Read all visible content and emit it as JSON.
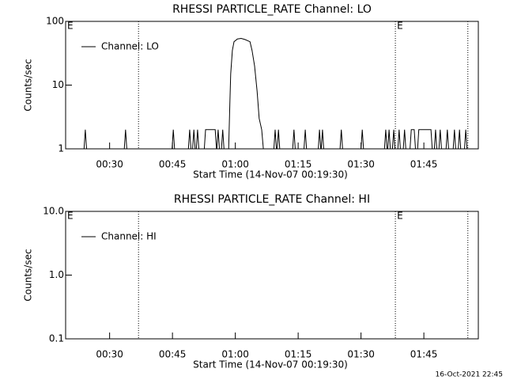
{
  "chart_data": [
    {
      "type": "line",
      "title": "RHESSI PARTICLE_RATE Channel: LO",
      "xlabel": "Start Time (14-Nov-07 00:19:30)",
      "ylabel": "Counts/sec",
      "log_y": true,
      "ylim": [
        1,
        100
      ],
      "yticks": [
        1,
        10,
        100
      ],
      "xlim": [
        0,
        98.5
      ],
      "xticks": [
        {
          "value": 10.5,
          "label": "00:30"
        },
        {
          "value": 25.5,
          "label": "00:45"
        },
        {
          "value": 40.5,
          "label": "01:00"
        },
        {
          "value": 55.5,
          "label": "01:15"
        },
        {
          "value": 70.5,
          "label": "01:30"
        },
        {
          "value": 85.5,
          "label": "01:45"
        }
      ],
      "vlines": [
        17.4,
        78.7,
        96
      ],
      "markers": [
        {
          "x": 0,
          "label": "E"
        },
        {
          "x": 78.7,
          "label": "E"
        }
      ],
      "series": [
        {
          "name": "Channel: LO",
          "color": "#000000",
          "x": [
            0,
            4.4,
            4.7,
            5.0,
            14.0,
            14.3,
            14.6,
            25.4,
            25.7,
            26.0,
            29.3,
            29.6,
            29.9,
            30.3,
            30.6,
            30.9,
            31.2,
            31.5,
            31.8,
            33.1,
            33.4,
            35.7,
            36.0,
            36.1,
            36.4,
            36.7,
            37.2,
            37.5,
            37.8,
            38.9,
            39.2,
            39.4,
            39.8,
            40.2,
            41.0,
            41.9,
            42.8,
            44.0,
            44.5,
            45.1,
            45.7,
            46.2,
            46.8,
            47.2,
            49.7,
            50.0,
            50.3,
            50.5,
            50.8,
            51.1,
            54.2,
            54.5,
            54.8,
            56.9,
            57.2,
            57.5,
            60.3,
            60.6,
            60.9,
            61.0,
            61.3,
            61.6,
            65.5,
            65.8,
            66.1,
            70.5,
            70.8,
            71.1,
            76.1,
            76.4,
            76.7,
            76.9,
            77.2,
            77.5,
            78.0,
            78.3,
            78.6,
            79.3,
            79.6,
            79.9,
            80.6,
            80.9,
            81.2,
            82.2,
            82.5,
            83.2,
            83.5,
            84.0,
            84.3,
            87.2,
            87.5,
            88.0,
            88.3,
            88.6,
            89.1,
            89.4,
            89.7,
            90.8,
            91.1,
            91.4,
            92.5,
            92.8,
            93.1,
            93.7,
            94.0,
            94.3,
            95.2,
            95.5,
            95.8,
            98.0
          ],
          "values": [
            1,
            1,
            2,
            1,
            1,
            2,
            1,
            1,
            2,
            1,
            1,
            2,
            1,
            1,
            2,
            1,
            1,
            2,
            1,
            1,
            2,
            2,
            1,
            1,
            2,
            1,
            1,
            2,
            1,
            1,
            5,
            15,
            35,
            48,
            53,
            54,
            52,
            48,
            35,
            20,
            8,
            3,
            2,
            1,
            1,
            2,
            1,
            1,
            2,
            1,
            1,
            2,
            1,
            1,
            2,
            1,
            1,
            2,
            1,
            1,
            2,
            1,
            1,
            2,
            1,
            1,
            2,
            1,
            1,
            2,
            1,
            1,
            2,
            1,
            1,
            2,
            1,
            1,
            2,
            1,
            1,
            2,
            1,
            1,
            2,
            2,
            1,
            1,
            2,
            2,
            1,
            1,
            2,
            1,
            1,
            2,
            1,
            1,
            2,
            1,
            1,
            2,
            1,
            1,
            2,
            1,
            1,
            2,
            1,
            1
          ]
        }
      ]
    },
    {
      "type": "line",
      "title": "RHESSI PARTICLE_RATE Channel: HI",
      "xlabel": "Start Time (14-Nov-07 00:19:30)",
      "ylabel": "Counts/sec",
      "log_y": true,
      "ylim": [
        0.1,
        10
      ],
      "yticks": [
        {
          "value": 0.1,
          "label": "0.1"
        },
        {
          "value": 1,
          "label": "1.0"
        },
        {
          "value": 10,
          "label": "10.0"
        }
      ],
      "xlim": [
        0,
        98.5
      ],
      "xticks": [
        {
          "value": 10.5,
          "label": "00:30"
        },
        {
          "value": 25.5,
          "label": "00:45"
        },
        {
          "value": 40.5,
          "label": "01:00"
        },
        {
          "value": 55.5,
          "label": "01:15"
        },
        {
          "value": 70.5,
          "label": "01:30"
        },
        {
          "value": 85.5,
          "label": "01:45"
        }
      ],
      "vlines": [
        17.4,
        78.7,
        96
      ],
      "markers": [
        {
          "x": 0,
          "label": "E"
        },
        {
          "x": 78.7,
          "label": "E"
        }
      ],
      "series": [
        {
          "name": "Channel: HI",
          "color": "#000000",
          "x": [],
          "values": []
        }
      ]
    }
  ],
  "timestamp": "16-Oct-2021 22:45"
}
